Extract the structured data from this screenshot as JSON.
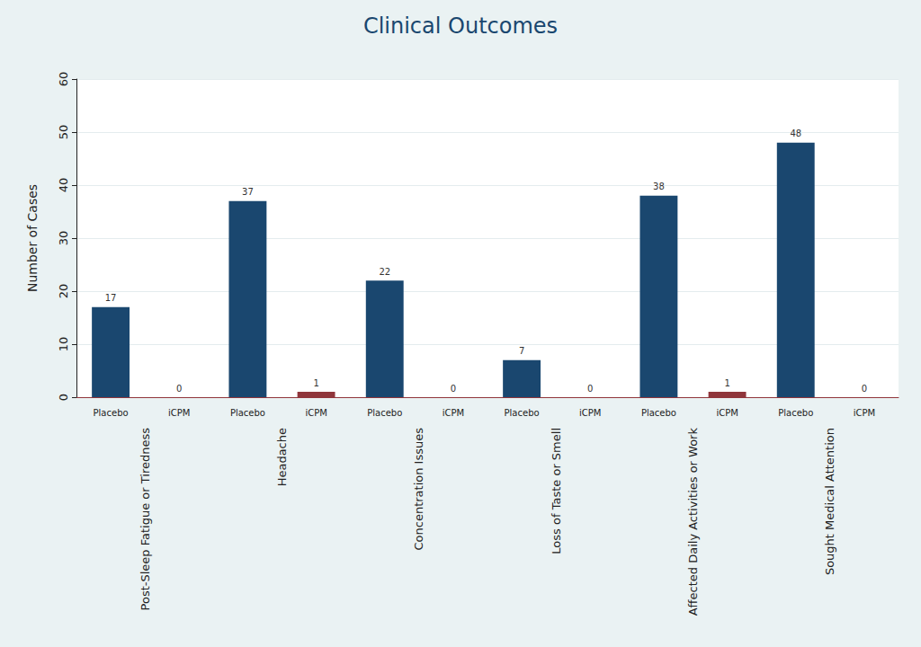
{
  "chart_data": {
    "type": "bar",
    "title": "Clinical Outcomes",
    "y_label": "Number of Cases",
    "categories": [
      "Post-Sleep Fatigue or Tiredness",
      "Headache",
      "Concentration Issues",
      "Loss of Taste or Smell",
      "Affected Daily Activities or Work",
      "Sought Medical Attention"
    ],
    "series": [
      {
        "name": "Placebo",
        "color": "#1a476f",
        "values": [
          17,
          37,
          22,
          7,
          38,
          48
        ]
      },
      {
        "name": "iCPM",
        "color": "#90353b",
        "values": [
          0,
          1,
          0,
          0,
          1,
          0
        ]
      }
    ],
    "ylim": [
      0,
      60
    ],
    "yticks": [
      0,
      10,
      20,
      30,
      40,
      50,
      60
    ],
    "grid": true,
    "data_labels": true
  }
}
